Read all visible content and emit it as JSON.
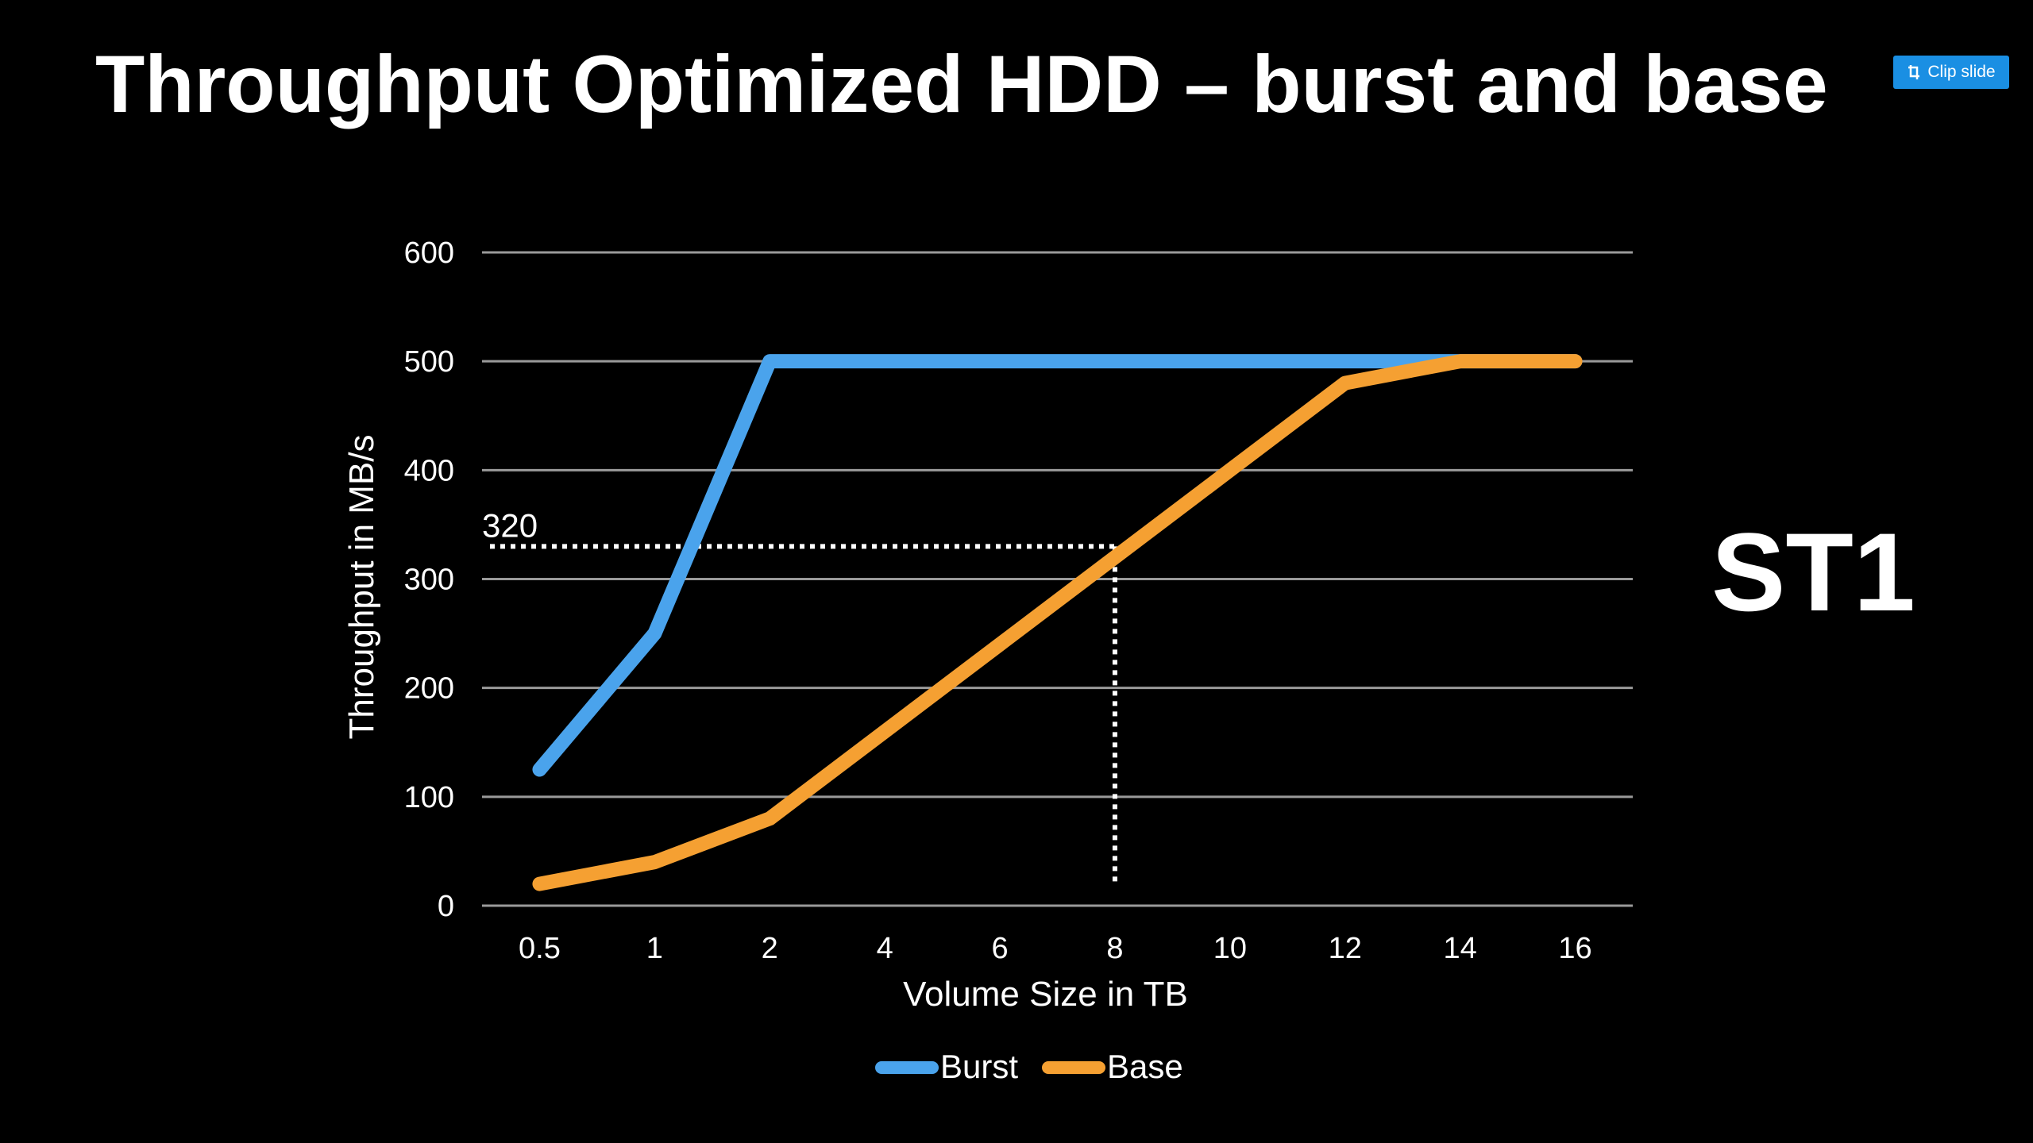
{
  "slide": {
    "title": "Throughput Optimized HDD – burst and base",
    "side_label": "ST1"
  },
  "toolbar": {
    "clip_label": "Clip slide",
    "clip_icon": "clip-icon"
  },
  "colors": {
    "background": "#000000",
    "grid": "#9a9a9a",
    "burst": "#4aa3ec",
    "base": "#f5a032",
    "clip_button": "#1a8fe3"
  },
  "chart_data": {
    "type": "line",
    "categories": [
      "0.5",
      "1",
      "2",
      "4",
      "6",
      "8",
      "10",
      "12",
      "14",
      "16"
    ],
    "series": [
      {
        "name": "Burst",
        "color": "#4aa3ec",
        "values": [
          125,
          250,
          500,
          500,
          500,
          500,
          500,
          500,
          500,
          500
        ]
      },
      {
        "name": "Base",
        "color": "#f5a032",
        "values": [
          20,
          40,
          80,
          160,
          240,
          320,
          400,
          480,
          500,
          500
        ]
      }
    ],
    "xlabel": "Volume Size in TB",
    "ylabel": "Throughput in MB/s",
    "ylim": [
      0,
      600
    ],
    "yticks": [
      "0",
      "100",
      "200",
      "300",
      "400",
      "500",
      "600"
    ],
    "grid": true,
    "legend": "bottom",
    "annotation": {
      "text": "320",
      "x_category": "8",
      "y": 330,
      "style": "dotted"
    }
  }
}
